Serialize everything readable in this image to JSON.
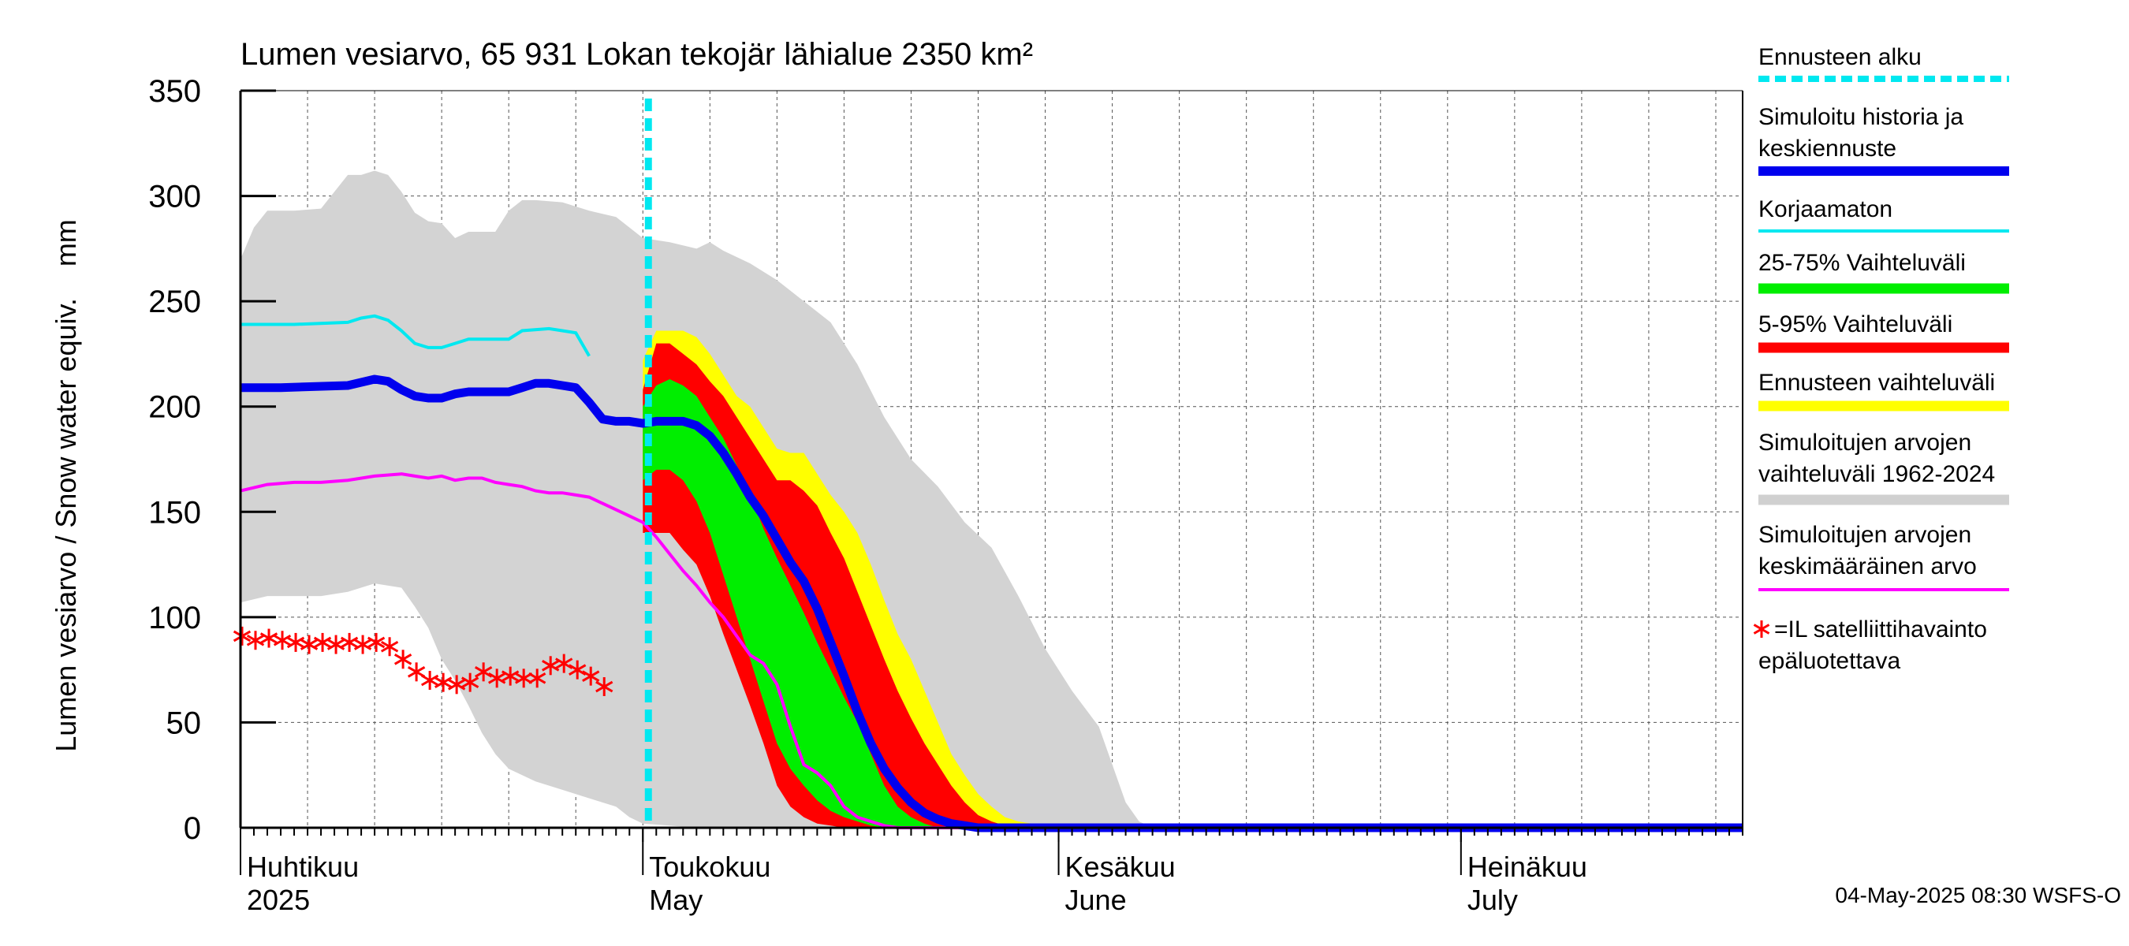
{
  "chart_data": {
    "type": "area",
    "title": "Lumen vesiarvo, 65 931 Lokan tekojär lähialue 2350 km²",
    "ylabel": "Lumen vesiarvo / Snow water equiv.    mm",
    "ylim": [
      0,
      350
    ],
    "yticks": [
      0,
      50,
      100,
      150,
      200,
      250,
      300,
      350
    ],
    "yticklabels": [
      "0",
      "50",
      "100",
      "150",
      "200",
      "250",
      "300",
      "350"
    ],
    "xlim_days": [
      0,
      112
    ],
    "x_unit": "days since 1 April 2025",
    "month_labels": [
      {
        "day": 0,
        "fi": "Huhtikuu",
        "en": "2025"
      },
      {
        "day": 30,
        "fi": "Toukokuu",
        "en": "May"
      },
      {
        "day": 61,
        "fi": "Kesäkuu",
        "en": "June"
      },
      {
        "day": 91,
        "fi": "Heinäkuu",
        "en": "July"
      }
    ],
    "forecast_start_day": 30,
    "series": {
      "hist_range_upper": [
        [
          0,
          270
        ],
        [
          1,
          285
        ],
        [
          2,
          293
        ],
        [
          4,
          293
        ],
        [
          6,
          294
        ],
        [
          7,
          302
        ],
        [
          8,
          310
        ],
        [
          9,
          310
        ],
        [
          10,
          312
        ],
        [
          11,
          310
        ],
        [
          12,
          302
        ],
        [
          13,
          292
        ],
        [
          14,
          288
        ],
        [
          15,
          287
        ],
        [
          16,
          280
        ],
        [
          17,
          283
        ],
        [
          18,
          283
        ],
        [
          19,
          283
        ],
        [
          20,
          293
        ],
        [
          21,
          298
        ],
        [
          22,
          298
        ],
        [
          24,
          297
        ],
        [
          26,
          293
        ],
        [
          28,
          290
        ],
        [
          30,
          280
        ],
        [
          32,
          278
        ],
        [
          34,
          275
        ],
        [
          35,
          278
        ],
        [
          36,
          274
        ],
        [
          38,
          268
        ],
        [
          40,
          260
        ],
        [
          42,
          250
        ],
        [
          44,
          240
        ],
        [
          46,
          220
        ],
        [
          48,
          195
        ],
        [
          50,
          175
        ],
        [
          52,
          162
        ],
        [
          54,
          145
        ],
        [
          56,
          133
        ],
        [
          58,
          110
        ],
        [
          60,
          85
        ],
        [
          62,
          65
        ],
        [
          64,
          48
        ],
        [
          65,
          30
        ],
        [
          66,
          12
        ],
        [
          67,
          3
        ],
        [
          68,
          0
        ]
      ],
      "hist_range_lower": [
        [
          0,
          107
        ],
        [
          2,
          110
        ],
        [
          4,
          110
        ],
        [
          6,
          110
        ],
        [
          8,
          112
        ],
        [
          10,
          116
        ],
        [
          12,
          114
        ],
        [
          13,
          105
        ],
        [
          14,
          95
        ],
        [
          15,
          80
        ],
        [
          16,
          70
        ],
        [
          17,
          58
        ],
        [
          18,
          45
        ],
        [
          19,
          35
        ],
        [
          20,
          28
        ],
        [
          22,
          22
        ],
        [
          24,
          18
        ],
        [
          26,
          14
        ],
        [
          28,
          10
        ],
        [
          29,
          5
        ],
        [
          30,
          2
        ],
        [
          32,
          1
        ],
        [
          34,
          0
        ]
      ],
      "forecast_range": [
        [
          30,
          222,
          150
        ],
        [
          31,
          236,
          150
        ],
        [
          33,
          236,
          145
        ],
        [
          34,
          233,
          140
        ],
        [
          35,
          225,
          130
        ],
        [
          36,
          215,
          110
        ],
        [
          37,
          205,
          90
        ],
        [
          38,
          200,
          75
        ],
        [
          39,
          190,
          60
        ],
        [
          40,
          180,
          40
        ],
        [
          41,
          178,
          25
        ],
        [
          42,
          178,
          15
        ],
        [
          43,
          168,
          8
        ],
        [
          44,
          158,
          3
        ],
        [
          45,
          150,
          2
        ],
        [
          46,
          140,
          0
        ],
        [
          47,
          125,
          0
        ],
        [
          48,
          108,
          0
        ],
        [
          49,
          92,
          0
        ],
        [
          50,
          80,
          0
        ],
        [
          51,
          65,
          0
        ],
        [
          52,
          50,
          0
        ],
        [
          53,
          35,
          0
        ],
        [
          54,
          25,
          0
        ],
        [
          55,
          16,
          0
        ],
        [
          56,
          10,
          0
        ],
        [
          57,
          5,
          0
        ],
        [
          58,
          3,
          0
        ],
        [
          59,
          2,
          0
        ],
        [
          60,
          1,
          0
        ],
        [
          61,
          0,
          0
        ]
      ],
      "p5_95": [
        [
          30,
          208,
          140
        ],
        [
          31,
          230,
          140
        ],
        [
          32,
          230,
          140
        ],
        [
          33,
          225,
          132
        ],
        [
          34,
          220,
          125
        ],
        [
          35,
          212,
          110
        ],
        [
          36,
          205,
          92
        ],
        [
          37,
          195,
          75
        ],
        [
          38,
          185,
          58
        ],
        [
          39,
          175,
          40
        ],
        [
          40,
          165,
          20
        ],
        [
          41,
          165,
          10
        ],
        [
          42,
          160,
          5
        ],
        [
          43,
          153,
          2
        ],
        [
          44,
          140,
          1
        ],
        [
          45,
          128,
          0
        ],
        [
          46,
          112,
          0
        ],
        [
          47,
          96,
          0
        ],
        [
          48,
          80,
          0
        ],
        [
          49,
          65,
          0
        ],
        [
          50,
          52,
          0
        ],
        [
          51,
          40,
          0
        ],
        [
          52,
          30,
          0
        ],
        [
          53,
          20,
          0
        ],
        [
          54,
          12,
          0
        ],
        [
          55,
          6,
          0
        ],
        [
          56,
          3,
          0
        ],
        [
          57,
          1,
          0
        ],
        [
          58,
          0,
          0
        ]
      ],
      "p25_75": [
        [
          30,
          200,
          165
        ],
        [
          31,
          210,
          170
        ],
        [
          32,
          213,
          170
        ],
        [
          33,
          210,
          165
        ],
        [
          34,
          205,
          155
        ],
        [
          35,
          195,
          140
        ],
        [
          36,
          185,
          120
        ],
        [
          37,
          172,
          100
        ],
        [
          38,
          158,
          80
        ],
        [
          39,
          142,
          60
        ],
        [
          40,
          128,
          40
        ],
        [
          41,
          115,
          28
        ],
        [
          42,
          102,
          20
        ],
        [
          43,
          88,
          13
        ],
        [
          44,
          75,
          8
        ],
        [
          45,
          62,
          5
        ],
        [
          46,
          50,
          3
        ],
        [
          47,
          35,
          1
        ],
        [
          48,
          20,
          0
        ],
        [
          49,
          10,
          0
        ],
        [
          50,
          5,
          0
        ],
        [
          51,
          2,
          0
        ],
        [
          52,
          0,
          0
        ]
      ],
      "simulated_median": [
        [
          0,
          209
        ],
        [
          3,
          209
        ],
        [
          8,
          210
        ],
        [
          10,
          213
        ],
        [
          11,
          212
        ],
        [
          12,
          208
        ],
        [
          13,
          205
        ],
        [
          14,
          204
        ],
        [
          15,
          204
        ],
        [
          16,
          206
        ],
        [
          17,
          207
        ],
        [
          20,
          207
        ],
        [
          21,
          209
        ],
        [
          22,
          211
        ],
        [
          23,
          211
        ],
        [
          24,
          210
        ],
        [
          25,
          209
        ],
        [
          26,
          202
        ],
        [
          27,
          194
        ],
        [
          28,
          193
        ],
        [
          29,
          193
        ],
        [
          30,
          192
        ],
        [
          31,
          193
        ],
        [
          33,
          193
        ],
        [
          34,
          191
        ],
        [
          35,
          186
        ],
        [
          36,
          178
        ],
        [
          37,
          168
        ],
        [
          38,
          157
        ],
        [
          39,
          148
        ],
        [
          40,
          137
        ],
        [
          41,
          126
        ],
        [
          42,
          117
        ],
        [
          43,
          104
        ],
        [
          44,
          88
        ],
        [
          45,
          72
        ],
        [
          46,
          55
        ],
        [
          47,
          40
        ],
        [
          48,
          28
        ],
        [
          49,
          19
        ],
        [
          50,
          12
        ],
        [
          51,
          7
        ],
        [
          52,
          4
        ],
        [
          53,
          2
        ],
        [
          54,
          1
        ],
        [
          55,
          0
        ],
        [
          112,
          0
        ]
      ],
      "uncorrected": [
        [
          0,
          239
        ],
        [
          4,
          239
        ],
        [
          8,
          240
        ],
        [
          9,
          242
        ],
        [
          10,
          243
        ],
        [
          11,
          241
        ],
        [
          12,
          236
        ],
        [
          13,
          230
        ],
        [
          14,
          228
        ],
        [
          15,
          228
        ],
        [
          16,
          230
        ],
        [
          17,
          232
        ],
        [
          20,
          232
        ],
        [
          21,
          236
        ],
        [
          23,
          237
        ],
        [
          24,
          236
        ],
        [
          25,
          235
        ],
        [
          26,
          224
        ]
      ],
      "mean": [
        [
          0,
          160
        ],
        [
          2,
          163
        ],
        [
          4,
          164
        ],
        [
          6,
          164
        ],
        [
          8,
          165
        ],
        [
          10,
          167
        ],
        [
          12,
          168
        ],
        [
          13,
          167
        ],
        [
          14,
          166
        ],
        [
          15,
          167
        ],
        [
          16,
          165
        ],
        [
          17,
          166
        ],
        [
          18,
          166
        ],
        [
          19,
          164
        ],
        [
          20,
          163
        ],
        [
          21,
          162
        ],
        [
          22,
          160
        ],
        [
          23,
          159
        ],
        [
          24,
          159
        ],
        [
          25,
          158
        ],
        [
          26,
          157
        ],
        [
          27,
          154
        ],
        [
          28,
          151
        ],
        [
          29,
          148
        ],
        [
          30,
          145
        ],
        [
          31,
          138
        ],
        [
          32,
          130
        ],
        [
          33,
          122
        ],
        [
          34,
          115
        ],
        [
          35,
          107
        ],
        [
          36,
          100
        ],
        [
          37,
          91
        ],
        [
          38,
          82
        ],
        [
          39,
          78
        ],
        [
          40,
          68
        ],
        [
          41,
          48
        ],
        [
          42,
          30
        ],
        [
          43,
          26
        ],
        [
          44,
          20
        ],
        [
          45,
          10
        ],
        [
          46,
          5
        ],
        [
          47,
          3
        ],
        [
          48,
          1
        ],
        [
          49,
          0
        ],
        [
          112,
          0
        ]
      ],
      "satellite_obs": [
        [
          0,
          91
        ],
        [
          1,
          89
        ],
        [
          2,
          90
        ],
        [
          3,
          89
        ],
        [
          4,
          88
        ],
        [
          5,
          87
        ],
        [
          6,
          88
        ],
        [
          7,
          87
        ],
        [
          8,
          88
        ],
        [
          9,
          87
        ],
        [
          10,
          88
        ],
        [
          11,
          86
        ],
        [
          12,
          80
        ],
        [
          13,
          74
        ],
        [
          14,
          70
        ],
        [
          15,
          69
        ],
        [
          16,
          68
        ],
        [
          17,
          69
        ],
        [
          18,
          74
        ],
        [
          19,
          71
        ],
        [
          20,
          72
        ],
        [
          21,
          71
        ],
        [
          22,
          71
        ],
        [
          23,
          77
        ],
        [
          24,
          78
        ],
        [
          25,
          75
        ],
        [
          26,
          72
        ],
        [
          27,
          67
        ]
      ]
    },
    "legend": [
      {
        "text": "Ennusteen alku",
        "color": "#00e8f0",
        "style": "dashed"
      },
      {
        "text": "Simuloitu historia ja keskiennuste",
        "color": "#0000ee",
        "style": "thick"
      },
      {
        "text": "Korjaamaton",
        "color": "#00e8f0",
        "style": "line"
      },
      {
        "text": "25-75% Vaihteluväli",
        "color": "#00ee00",
        "style": "band"
      },
      {
        "text": "5-95% Vaihteluväli",
        "color": "#ff0000",
        "style": "band"
      },
      {
        "text": "Ennusteen vaihteluväli",
        "color": "#ffff00",
        "style": "band"
      },
      {
        "text": "Simuloitujen arvojen vaihteluväli 1962-2024",
        "color": "#d0d0d0",
        "style": "band"
      },
      {
        "text": "Simuloitujen arvojen keskimääräinen arvo",
        "color": "#ff00ff",
        "style": "line"
      },
      {
        "text": "=IL satelliittihavainto epäluotettava",
        "color": "#ff0000",
        "style": "marker"
      }
    ],
    "footer": "04-May-2025 08:30 WSFS-O"
  }
}
